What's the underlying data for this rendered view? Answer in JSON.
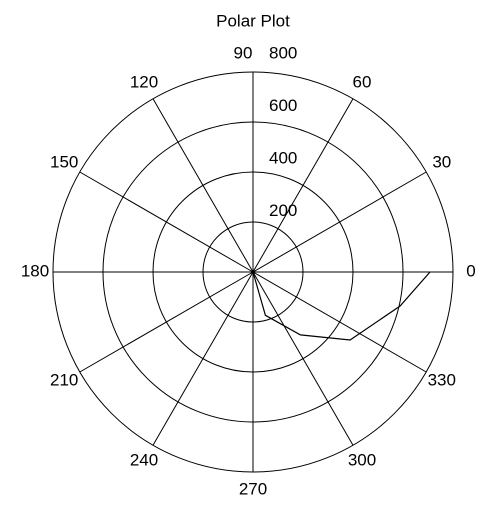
{
  "chart_data": {
    "type": "polar",
    "title": "Polar Plot",
    "theta": [
      270,
      286,
      307,
      325,
      347,
      360
    ],
    "r": [
      0,
      180,
      315,
      474,
      604,
      708
    ],
    "color": "#000000",
    "rlim": [
      0,
      800
    ],
    "rticks": [
      200,
      400,
      600,
      800
    ],
    "thetaticks": [
      0,
      30,
      60,
      90,
      120,
      150,
      180,
      210,
      240,
      270,
      300,
      330
    ],
    "grid": true
  }
}
